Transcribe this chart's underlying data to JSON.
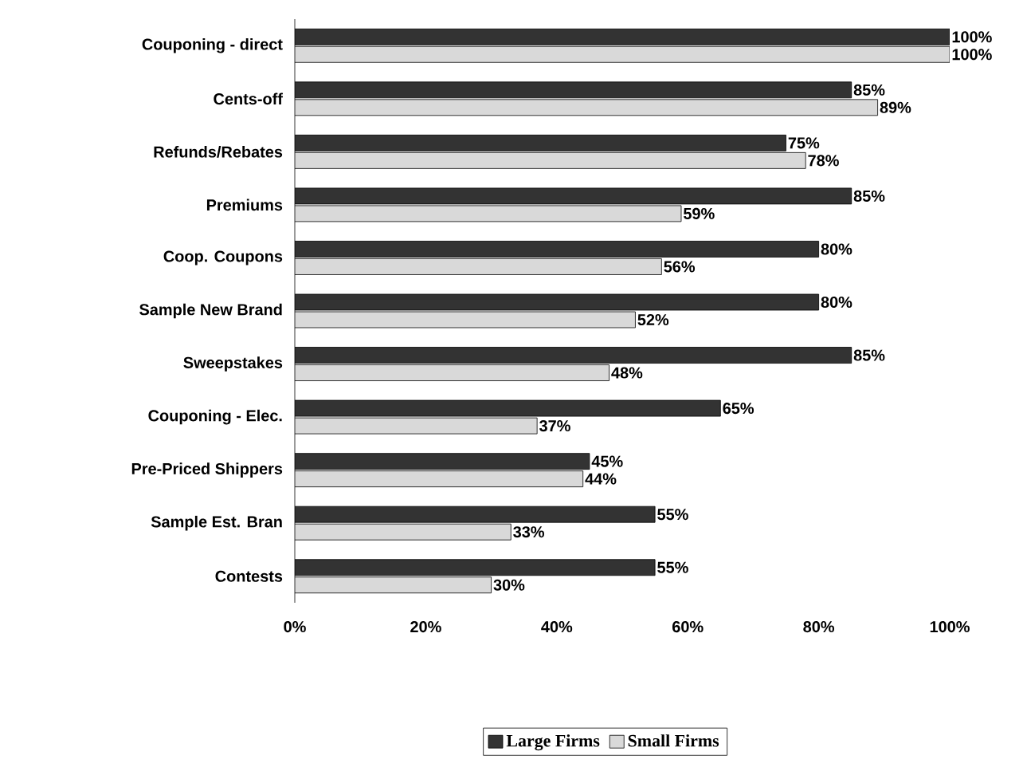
{
  "chart_data": {
    "type": "bar",
    "orientation": "horizontal",
    "categories": [
      "Couponing - direct",
      "Cents-off",
      "Refunds/Rebates",
      "Premiums",
      "Coop. Coupons",
      "Sample  New Brand",
      "Sweepstakes",
      "Couponing - Elec.",
      "Pre-Priced Shippers",
      "Sample Est. Bran",
      "Contests"
    ],
    "series": [
      {
        "name": "Large Firms",
        "color": "#333333",
        "values": [
          100,
          85,
          75,
          85,
          80,
          80,
          85,
          65,
          45,
          55,
          55
        ],
        "value_labels": [
          "100%",
          "85%",
          "75%",
          "85%",
          "80%",
          "80%",
          "85%",
          "65%",
          "45%",
          "55%",
          "55%"
        ]
      },
      {
        "name": "Small Firms",
        "color": "#d9d9d9",
        "values": [
          100,
          89,
          78,
          59,
          56,
          52,
          48,
          37,
          44,
          33,
          30
        ],
        "value_labels": [
          "100%",
          "89%",
          "78%",
          "59%",
          "56%",
          "52%",
          "48%",
          "37%",
          "44%",
          "33%",
          "30%"
        ]
      }
    ],
    "xlim": [
      0,
      100
    ],
    "xticks": [
      {
        "value": 0,
        "label": "0%"
      },
      {
        "value": 20,
        "label": "20%"
      },
      {
        "value": 40,
        "label": "40%"
      },
      {
        "value": 60,
        "label": "60%"
      },
      {
        "value": 80,
        "label": "80%"
      },
      {
        "value": 100,
        "label": "100%"
      }
    ],
    "legend": "bottom"
  }
}
